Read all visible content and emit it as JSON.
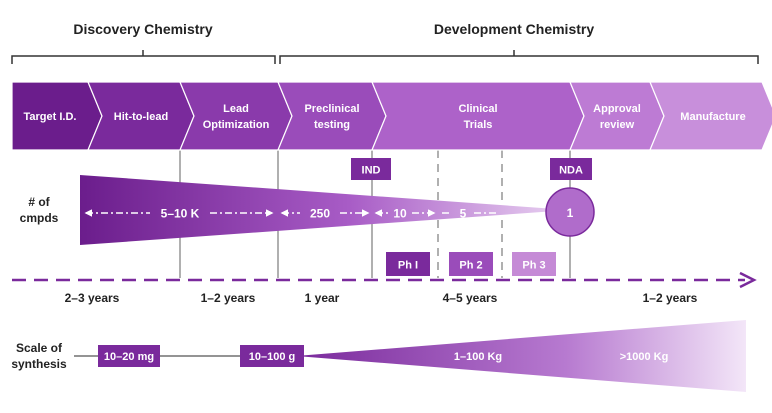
{
  "brackets": {
    "discovery": "Discovery Chemistry",
    "development": "Development Chemistry"
  },
  "stages": [
    {
      "lines": [
        "Target I.D."
      ],
      "color": "#6b1d8c"
    },
    {
      "lines": [
        "Hit-to-lead"
      ],
      "color": "#7a2a9c"
    },
    {
      "lines": [
        "Lead",
        "Optimization"
      ],
      "color": "#8a3aab"
    },
    {
      "lines": [
        "Preclinical",
        "testing"
      ],
      "color": "#9a4cba"
    },
    {
      "lines": [
        "Clinical",
        "Trials"
      ],
      "color": "#ad62c9"
    },
    {
      "lines": [
        "Approval",
        "review"
      ],
      "color": "#bd7bd4"
    },
    {
      "lines": [
        "Manufacture"
      ],
      "color": "#c88fdb"
    }
  ],
  "milestones": {
    "ind": "IND",
    "nda": "NDA"
  },
  "compounds": {
    "label_line1": "# of",
    "label_line2": "cmpds",
    "counts": [
      "5–10 K",
      "250",
      "10",
      "5"
    ],
    "final": "1"
  },
  "phases": [
    "Ph I",
    "Ph 2",
    "Ph 3"
  ],
  "durations": [
    "2–3 years",
    "1–2 years",
    "1 year",
    "4–5 years",
    "1–2 years"
  ],
  "synthesis": {
    "label_line1": "Scale of",
    "label_line2": "synthesis",
    "amounts": [
      "10–20 mg",
      "10–100 g",
      "1–100 Kg",
      ">1000 Kg"
    ]
  },
  "colors": {
    "dark_purple": "#6b1d8c",
    "mid_purple": "#8e3fae",
    "light_purple": "#c88fdb",
    "phase3": "#c58ad6",
    "grey_line": "#b0b0b0"
  }
}
